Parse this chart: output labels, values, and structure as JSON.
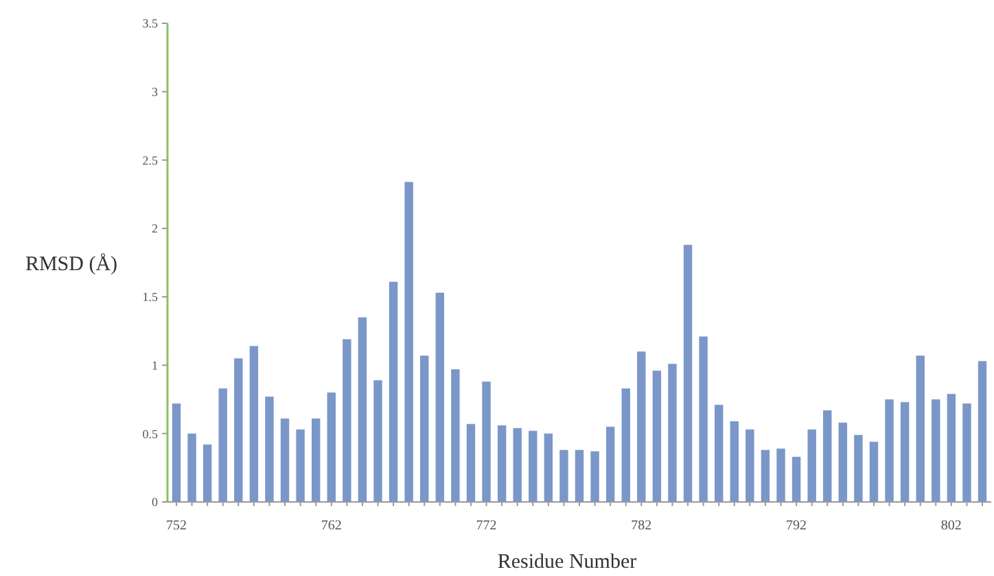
{
  "chart_data": {
    "type": "bar",
    "xlabel": "Residue Number",
    "ylabel": "RMSD (Å)",
    "categories": [
      "752",
      null,
      null,
      null,
      null,
      null,
      null,
      null,
      null,
      null,
      "762",
      null,
      null,
      null,
      null,
      null,
      null,
      null,
      null,
      null,
      "772",
      null,
      null,
      null,
      null,
      null,
      null,
      null,
      null,
      null,
      "782",
      null,
      null,
      null,
      null,
      null,
      null,
      null,
      null,
      null,
      "792",
      null,
      null,
      null,
      null,
      null,
      null,
      null,
      null,
      null,
      "802",
      null,
      null
    ],
    "values": [
      0.72,
      0.5,
      0.42,
      0.83,
      1.05,
      1.14,
      0.77,
      0.61,
      0.53,
      0.61,
      0.8,
      1.19,
      1.35,
      0.89,
      1.61,
      2.34,
      1.07,
      1.53,
      0.97,
      0.57,
      0.88,
      0.56,
      0.54,
      0.52,
      0.5,
      0.38,
      0.38,
      0.37,
      0.55,
      0.83,
      1.1,
      0.96,
      1.01,
      1.88,
      1.21,
      0.71,
      0.59,
      0.53,
      0.38,
      0.39,
      0.33,
      0.53,
      0.67,
      0.58,
      0.49,
      0.44,
      0.75,
      0.73,
      1.07,
      0.75,
      0.79,
      0.72,
      1.03
    ],
    "color": "#7b97c9",
    "ylim": [
      0,
      3.5
    ],
    "yticks": [
      0,
      0.5,
      1,
      1.5,
      2,
      2.5,
      3,
      3.5
    ]
  }
}
